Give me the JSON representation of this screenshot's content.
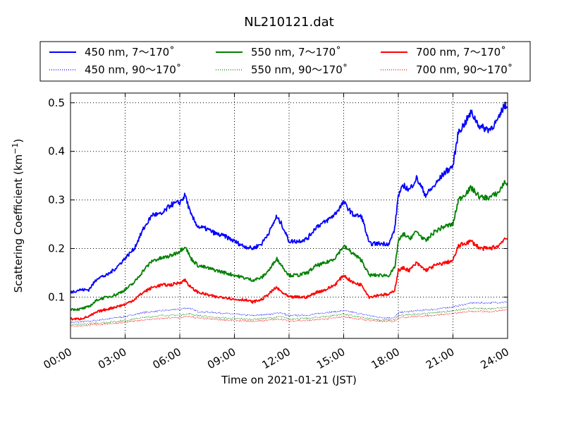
{
  "chart_data": {
    "type": "line",
    "title": "NL210121.dat",
    "xlabel": "Time on 2021-01-21 (JST)",
    "ylabel": "Scattering Coefficient (km",
    "ylabel_sup": "−1",
    "ylabel_close": ")",
    "xlim": [
      0,
      24
    ],
    "ylim": [
      0.015,
      0.52
    ],
    "x_ticks": [
      0,
      3,
      6,
      9,
      12,
      15,
      18,
      21,
      24
    ],
    "x_tick_labels": [
      "00:00",
      "03:00",
      "06:00",
      "09:00",
      "12:00",
      "15:00",
      "18:00",
      "21:00",
      "24:00"
    ],
    "y_ticks": [
      0.1,
      0.2,
      0.3,
      0.4,
      0.5
    ],
    "y_tick_labels": [
      "0.1",
      "0.2",
      "0.3",
      "0.4",
      "0.5"
    ],
    "grid": true,
    "legend_position": "top",
    "series": [
      {
        "name": "450 nm, 7～170˚",
        "color": "#0000ff",
        "style": "solid",
        "points": [
          [
            0,
            0.11
          ],
          [
            0.5,
            0.115
          ],
          [
            1,
            0.115
          ],
          [
            1.5,
            0.14
          ],
          [
            2,
            0.145
          ],
          [
            2.5,
            0.16
          ],
          [
            3,
            0.18
          ],
          [
            3.5,
            0.2
          ],
          [
            4,
            0.24
          ],
          [
            4.5,
            0.27
          ],
          [
            5,
            0.27
          ],
          [
            5.5,
            0.29
          ],
          [
            6,
            0.295
          ],
          [
            6.3,
            0.31
          ],
          [
            6.6,
            0.27
          ],
          [
            7,
            0.245
          ],
          [
            7.5,
            0.24
          ],
          [
            8,
            0.23
          ],
          [
            8.5,
            0.225
          ],
          [
            9,
            0.215
          ],
          [
            9.5,
            0.205
          ],
          [
            10,
            0.2
          ],
          [
            10.5,
            0.21
          ],
          [
            11,
            0.24
          ],
          [
            11.3,
            0.265
          ],
          [
            11.6,
            0.25
          ],
          [
            12,
            0.215
          ],
          [
            12.5,
            0.215
          ],
          [
            13,
            0.22
          ],
          [
            13.5,
            0.245
          ],
          [
            14,
            0.255
          ],
          [
            14.5,
            0.27
          ],
          [
            15,
            0.295
          ],
          [
            15.5,
            0.27
          ],
          [
            16,
            0.265
          ],
          [
            16.4,
            0.21
          ],
          [
            17,
            0.21
          ],
          [
            17.5,
            0.21
          ],
          [
            17.8,
            0.24
          ],
          [
            18,
            0.31
          ],
          [
            18.3,
            0.33
          ],
          [
            18.6,
            0.32
          ],
          [
            19,
            0.345
          ],
          [
            19.5,
            0.31
          ],
          [
            20,
            0.33
          ],
          [
            20.5,
            0.355
          ],
          [
            21,
            0.37
          ],
          [
            21.3,
            0.44
          ],
          [
            21.6,
            0.455
          ],
          [
            22,
            0.48
          ],
          [
            22.5,
            0.45
          ],
          [
            23,
            0.445
          ],
          [
            23.5,
            0.465
          ],
          [
            23.8,
            0.495
          ],
          [
            24,
            0.49
          ]
        ]
      },
      {
        "name": "550 nm, 7～170˚",
        "color": "#008000",
        "style": "solid",
        "points": [
          [
            0,
            0.075
          ],
          [
            0.5,
            0.075
          ],
          [
            1,
            0.08
          ],
          [
            1.5,
            0.095
          ],
          [
            2,
            0.1
          ],
          [
            2.5,
            0.105
          ],
          [
            3,
            0.115
          ],
          [
            3.5,
            0.13
          ],
          [
            4,
            0.155
          ],
          [
            4.5,
            0.175
          ],
          [
            5,
            0.18
          ],
          [
            5.5,
            0.185
          ],
          [
            6,
            0.195
          ],
          [
            6.3,
            0.205
          ],
          [
            6.6,
            0.18
          ],
          [
            7,
            0.165
          ],
          [
            7.5,
            0.16
          ],
          [
            8,
            0.155
          ],
          [
            8.5,
            0.15
          ],
          [
            9,
            0.145
          ],
          [
            9.5,
            0.14
          ],
          [
            10,
            0.135
          ],
          [
            10.5,
            0.14
          ],
          [
            11,
            0.16
          ],
          [
            11.3,
            0.18
          ],
          [
            11.6,
            0.165
          ],
          [
            12,
            0.145
          ],
          [
            12.5,
            0.145
          ],
          [
            13,
            0.15
          ],
          [
            13.5,
            0.165
          ],
          [
            14,
            0.17
          ],
          [
            14.5,
            0.18
          ],
          [
            15,
            0.205
          ],
          [
            15.5,
            0.19
          ],
          [
            16,
            0.175
          ],
          [
            16.4,
            0.145
          ],
          [
            17,
            0.145
          ],
          [
            17.5,
            0.145
          ],
          [
            17.8,
            0.16
          ],
          [
            18,
            0.215
          ],
          [
            18.3,
            0.23
          ],
          [
            18.6,
            0.22
          ],
          [
            19,
            0.235
          ],
          [
            19.5,
            0.215
          ],
          [
            20,
            0.235
          ],
          [
            20.5,
            0.245
          ],
          [
            21,
            0.25
          ],
          [
            21.3,
            0.3
          ],
          [
            21.6,
            0.31
          ],
          [
            22,
            0.325
          ],
          [
            22.5,
            0.305
          ],
          [
            23,
            0.305
          ],
          [
            23.5,
            0.315
          ],
          [
            23.8,
            0.335
          ],
          [
            24,
            0.335
          ]
        ]
      },
      {
        "name": "700 nm, 7～170˚",
        "color": "#ff0000",
        "style": "solid",
        "points": [
          [
            0,
            0.055
          ],
          [
            0.5,
            0.055
          ],
          [
            1,
            0.06
          ],
          [
            1.5,
            0.07
          ],
          [
            2,
            0.075
          ],
          [
            2.5,
            0.08
          ],
          [
            3,
            0.085
          ],
          [
            3.5,
            0.095
          ],
          [
            4,
            0.11
          ],
          [
            4.5,
            0.12
          ],
          [
            5,
            0.125
          ],
          [
            5.5,
            0.125
          ],
          [
            6,
            0.13
          ],
          [
            6.3,
            0.135
          ],
          [
            6.6,
            0.12
          ],
          [
            7,
            0.11
          ],
          [
            7.5,
            0.105
          ],
          [
            8,
            0.1
          ],
          [
            8.5,
            0.1
          ],
          [
            9,
            0.095
          ],
          [
            9.5,
            0.095
          ],
          [
            10,
            0.09
          ],
          [
            10.5,
            0.095
          ],
          [
            11,
            0.11
          ],
          [
            11.3,
            0.12
          ],
          [
            11.6,
            0.11
          ],
          [
            12,
            0.1
          ],
          [
            12.5,
            0.1
          ],
          [
            13,
            0.1
          ],
          [
            13.5,
            0.11
          ],
          [
            14,
            0.115
          ],
          [
            14.5,
            0.125
          ],
          [
            15,
            0.145
          ],
          [
            15.5,
            0.13
          ],
          [
            16,
            0.125
          ],
          [
            16.4,
            0.1
          ],
          [
            17,
            0.105
          ],
          [
            17.5,
            0.105
          ],
          [
            17.8,
            0.115
          ],
          [
            18,
            0.155
          ],
          [
            18.3,
            0.16
          ],
          [
            18.6,
            0.155
          ],
          [
            19,
            0.17
          ],
          [
            19.5,
            0.155
          ],
          [
            20,
            0.165
          ],
          [
            20.5,
            0.17
          ],
          [
            21,
            0.175
          ],
          [
            21.3,
            0.205
          ],
          [
            21.6,
            0.21
          ],
          [
            22,
            0.215
          ],
          [
            22.5,
            0.2
          ],
          [
            23,
            0.2
          ],
          [
            23.5,
            0.205
          ],
          [
            23.8,
            0.22
          ],
          [
            24,
            0.22
          ]
        ]
      },
      {
        "name": "450 nm, 90～170˚",
        "color": "#0000ff",
        "style": "dotted",
        "points": [
          [
            0,
            0.048
          ],
          [
            1,
            0.05
          ],
          [
            2,
            0.055
          ],
          [
            3,
            0.06
          ],
          [
            4,
            0.068
          ],
          [
            5,
            0.072
          ],
          [
            6,
            0.075
          ],
          [
            6.5,
            0.078
          ],
          [
            7,
            0.07
          ],
          [
            8,
            0.068
          ],
          [
            9,
            0.065
          ],
          [
            10,
            0.062
          ],
          [
            11,
            0.065
          ],
          [
            11.5,
            0.068
          ],
          [
            12,
            0.062
          ],
          [
            13,
            0.063
          ],
          [
            14,
            0.068
          ],
          [
            15,
            0.072
          ],
          [
            16,
            0.065
          ],
          [
            17,
            0.058
          ],
          [
            17.8,
            0.058
          ],
          [
            18,
            0.068
          ],
          [
            19,
            0.072
          ],
          [
            20,
            0.075
          ],
          [
            21,
            0.08
          ],
          [
            22,
            0.088
          ],
          [
            23,
            0.088
          ],
          [
            24,
            0.09
          ]
        ]
      },
      {
        "name": "550 nm, 90～170˚",
        "color": "#008000",
        "style": "dotted",
        "points": [
          [
            0,
            0.043
          ],
          [
            1,
            0.045
          ],
          [
            2,
            0.048
          ],
          [
            3,
            0.052
          ],
          [
            4,
            0.058
          ],
          [
            5,
            0.062
          ],
          [
            6,
            0.063
          ],
          [
            6.5,
            0.066
          ],
          [
            7,
            0.062
          ],
          [
            8,
            0.058
          ],
          [
            9,
            0.056
          ],
          [
            10,
            0.054
          ],
          [
            11,
            0.057
          ],
          [
            11.5,
            0.06
          ],
          [
            12,
            0.055
          ],
          [
            13,
            0.056
          ],
          [
            14,
            0.06
          ],
          [
            15,
            0.065
          ],
          [
            16,
            0.058
          ],
          [
            17,
            0.053
          ],
          [
            17.8,
            0.053
          ],
          [
            18,
            0.062
          ],
          [
            19,
            0.065
          ],
          [
            20,
            0.068
          ],
          [
            21,
            0.072
          ],
          [
            22,
            0.077
          ],
          [
            23,
            0.076
          ],
          [
            24,
            0.08
          ]
        ]
      },
      {
        "name": "700 nm, 90～170˚",
        "color": "#ff0000",
        "style": "dotted",
        "points": [
          [
            0,
            0.04
          ],
          [
            1,
            0.042
          ],
          [
            2,
            0.045
          ],
          [
            3,
            0.048
          ],
          [
            4,
            0.053
          ],
          [
            5,
            0.056
          ],
          [
            6,
            0.058
          ],
          [
            6.5,
            0.06
          ],
          [
            7,
            0.057
          ],
          [
            8,
            0.054
          ],
          [
            9,
            0.052
          ],
          [
            10,
            0.05
          ],
          [
            11,
            0.053
          ],
          [
            11.5,
            0.055
          ],
          [
            12,
            0.051
          ],
          [
            13,
            0.052
          ],
          [
            14,
            0.055
          ],
          [
            15,
            0.06
          ],
          [
            16,
            0.054
          ],
          [
            17,
            0.05
          ],
          [
            17.8,
            0.05
          ],
          [
            18,
            0.058
          ],
          [
            19,
            0.06
          ],
          [
            20,
            0.063
          ],
          [
            21,
            0.066
          ],
          [
            22,
            0.071
          ],
          [
            23,
            0.07
          ],
          [
            24,
            0.074
          ]
        ]
      }
    ]
  }
}
